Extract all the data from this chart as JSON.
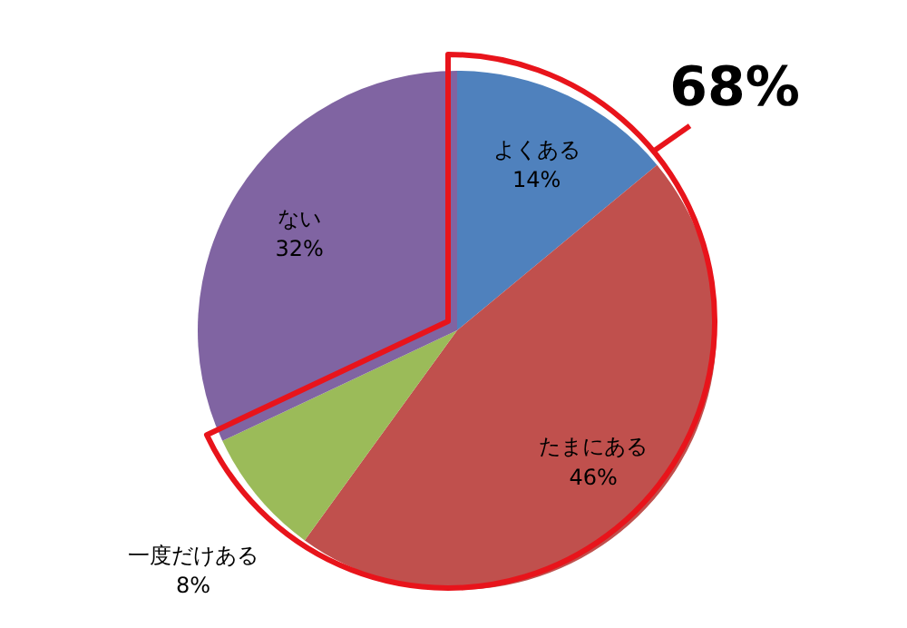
{
  "chart_data": {
    "type": "pie",
    "categories": [
      "よくある",
      "たまにある",
      "一度だけある",
      "ない"
    ],
    "values": [
      14,
      46,
      8,
      32
    ],
    "colors": [
      "#4f81bd",
      "#c0504d",
      "#9bbb59",
      "#8064a2"
    ],
    "annotations": [
      "68%"
    ],
    "value_labels": [
      "14%",
      "46%",
      "8%",
      "32%"
    ],
    "legend": false
  }
}
